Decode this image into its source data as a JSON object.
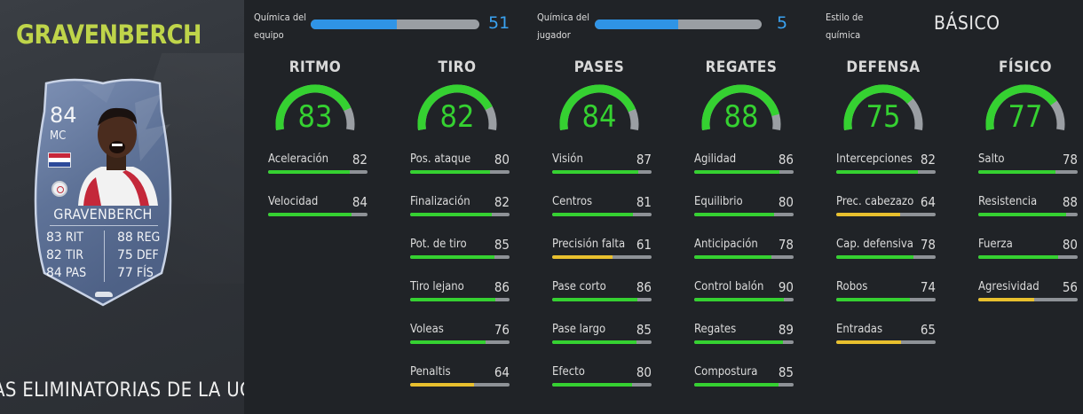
{
  "player": {
    "name": "GRAVENBERCH",
    "card": {
      "rating": "84",
      "position": "MC",
      "name": "GRAVENBERCH",
      "stats_left": [
        {
          "value": "83",
          "label": "RIT"
        },
        {
          "value": "82",
          "label": "TIR"
        },
        {
          "value": "84",
          "label": "PAS"
        }
      ],
      "stats_right": [
        {
          "value": "88",
          "label": "REG"
        },
        {
          "value": "75",
          "label": "DEF"
        },
        {
          "value": "77",
          "label": "FÍS"
        }
      ]
    },
    "promo": "AS ELIMINATORIAS DE LA UCL"
  },
  "chemistry": {
    "team": {
      "label_line1": "Química del",
      "label_line2": "equipo",
      "value": "51",
      "fraction": 0.51
    },
    "player": {
      "label_line1": "Química del",
      "label_line2": "jugador",
      "value": "5",
      "fraction": 0.5
    },
    "style": {
      "label_line1": "Estilo de",
      "label_line2": "química",
      "value": "BÁSICO"
    }
  },
  "colors": {
    "green": "#35d131",
    "yellow": "#e8c02e",
    "blue": "#2f94e6",
    "name_accent": "#bfd54a",
    "track": "#8e9297"
  },
  "categories": [
    {
      "title": "RITMO",
      "value": 83,
      "stats": [
        {
          "label": "Aceleración",
          "value": 82
        },
        {
          "label": "Velocidad",
          "value": 84
        }
      ]
    },
    {
      "title": "TIRO",
      "value": 82,
      "stats": [
        {
          "label": "Pos. ataque",
          "value": 80
        },
        {
          "label": "Finalización",
          "value": 82
        },
        {
          "label": "Pot. de tiro",
          "value": 85
        },
        {
          "label": "Tiro lejano",
          "value": 86
        },
        {
          "label": "Voleas",
          "value": 76
        },
        {
          "label": "Penaltis",
          "value": 64
        }
      ]
    },
    {
      "title": "PASES",
      "value": 84,
      "stats": [
        {
          "label": "Visión",
          "value": 87
        },
        {
          "label": "Centros",
          "value": 81
        },
        {
          "label": "Precisión falta",
          "value": 61
        },
        {
          "label": "Pase corto",
          "value": 86
        },
        {
          "label": "Pase largo",
          "value": 85
        },
        {
          "label": "Efecto",
          "value": 80
        }
      ]
    },
    {
      "title": "REGATES",
      "value": 88,
      "stats": [
        {
          "label": "Agilidad",
          "value": 86
        },
        {
          "label": "Equilibrio",
          "value": 80
        },
        {
          "label": "Anticipación",
          "value": 78
        },
        {
          "label": "Control balón",
          "value": 90
        },
        {
          "label": "Regates",
          "value": 89
        },
        {
          "label": "Compostura",
          "value": 85
        }
      ]
    },
    {
      "title": "DEFENSA",
      "value": 75,
      "stats": [
        {
          "label": "Intercepciones",
          "value": 82
        },
        {
          "label": "Prec. cabezazo",
          "value": 64
        },
        {
          "label": "Cap. defensiva",
          "value": 78
        },
        {
          "label": "Robos",
          "value": 74
        },
        {
          "label": "Entradas",
          "value": 65
        }
      ]
    },
    {
      "title": "FÍSICO",
      "value": 77,
      "stats": [
        {
          "label": "Salto",
          "value": 78
        },
        {
          "label": "Resistencia",
          "value": 88
        },
        {
          "label": "Fuerza",
          "value": 80
        },
        {
          "label": "Agresividad",
          "value": 56
        }
      ]
    }
  ]
}
